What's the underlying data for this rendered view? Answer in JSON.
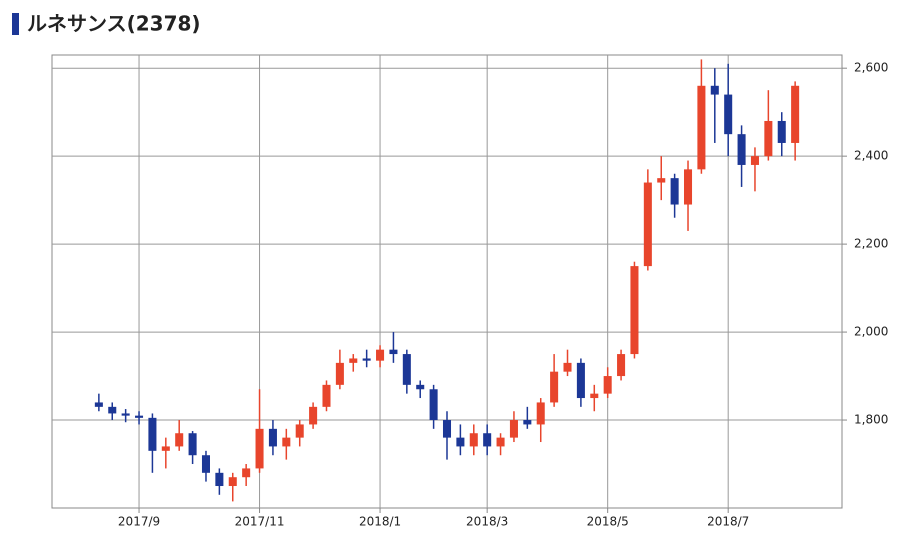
{
  "chart_data": {
    "type": "candlestick",
    "title": "ルネサンス(2378)",
    "categories": [
      null,
      null,
      null,
      null,
      null,
      null,
      "2017/9",
      null,
      null,
      null,
      null,
      null,
      null,
      null,
      null,
      "2017/11",
      null,
      null,
      null,
      null,
      null,
      null,
      null,
      null,
      "2018/1",
      null,
      null,
      null,
      null,
      null,
      null,
      null,
      "2018/3",
      null,
      null,
      null,
      null,
      null,
      null,
      null,
      null,
      "2018/5",
      null,
      null,
      null,
      null,
      null,
      null,
      null,
      null,
      "2018/7",
      null,
      null,
      null,
      null,
      null,
      null,
      null,
      null
    ],
    "open": [
      null,
      null,
      null,
      1840,
      1830,
      1815,
      1810,
      1805,
      1730,
      1740,
      1770,
      1720,
      1680,
      1650,
      1670,
      1690,
      1780,
      1740,
      1760,
      1790,
      1830,
      1880,
      1930,
      1940,
      1935,
      1960,
      1950,
      1880,
      1870,
      1800,
      1760,
      1740,
      1770,
      1740,
      1760,
      1800,
      1790,
      1840,
      1910,
      1930,
      1850,
      1860,
      1900,
      1950,
      2150,
      2340,
      2350,
      2290,
      2370,
      2560,
      2540,
      2450,
      2380,
      2400,
      2480,
      2430,
      null,
      null,
      null
    ],
    "high": [
      null,
      null,
      null,
      1860,
      1840,
      1825,
      1820,
      1815,
      1760,
      1800,
      1775,
      1730,
      1690,
      1680,
      1700,
      1870,
      1800,
      1780,
      1800,
      1840,
      1890,
      1960,
      1950,
      1960,
      1970,
      2000,
      1960,
      1890,
      1880,
      1820,
      1790,
      1790,
      1790,
      1770,
      1820,
      1830,
      1850,
      1950,
      1960,
      1940,
      1880,
      1920,
      1960,
      2160,
      2370,
      2400,
      2360,
      2390,
      2620,
      2600,
      2610,
      2470,
      2420,
      2550,
      2500,
      2570,
      null,
      null,
      null
    ],
    "low": [
      null,
      null,
      null,
      1820,
      1800,
      1795,
      1790,
      1680,
      1690,
      1730,
      1700,
      1660,
      1630,
      1615,
      1650,
      1680,
      1720,
      1710,
      1740,
      1780,
      1820,
      1870,
      1910,
      1920,
      1920,
      1930,
      1860,
      1850,
      1780,
      1710,
      1720,
      1720,
      1720,
      1720,
      1750,
      1780,
      1750,
      1830,
      1900,
      1830,
      1820,
      1850,
      1890,
      1940,
      2140,
      2300,
      2260,
      2230,
      2360,
      2430,
      2400,
      2330,
      2320,
      2390,
      2400,
      2390,
      null,
      null,
      null
    ],
    "close": [
      null,
      null,
      null,
      1830,
      1815,
      1810,
      1805,
      1730,
      1740,
      1770,
      1720,
      1680,
      1650,
      1670,
      1690,
      1780,
      1740,
      1760,
      1790,
      1830,
      1880,
      1930,
      1940,
      1935,
      1960,
      1950,
      1880,
      1870,
      1800,
      1760,
      1740,
      1770,
      1740,
      1760,
      1800,
      1790,
      1840,
      1910,
      1930,
      1850,
      1860,
      1900,
      1950,
      2150,
      2340,
      2350,
      2290,
      2370,
      2560,
      2540,
      2450,
      2380,
      2400,
      2480,
      2430,
      2560,
      null,
      null,
      null
    ],
    "up_color": "#e8452c",
    "down_color": "#1c3796",
    "ylim": [
      1600,
      2630
    ],
    "yticks": [
      {
        "value": 1800,
        "label": "1,800"
      },
      {
        "value": 2000,
        "label": "2,000"
      },
      {
        "value": 2200,
        "label": "2,200"
      },
      {
        "value": 2400,
        "label": "2,400"
      },
      {
        "value": 2600,
        "label": "2,600"
      }
    ],
    "grid": true
  }
}
